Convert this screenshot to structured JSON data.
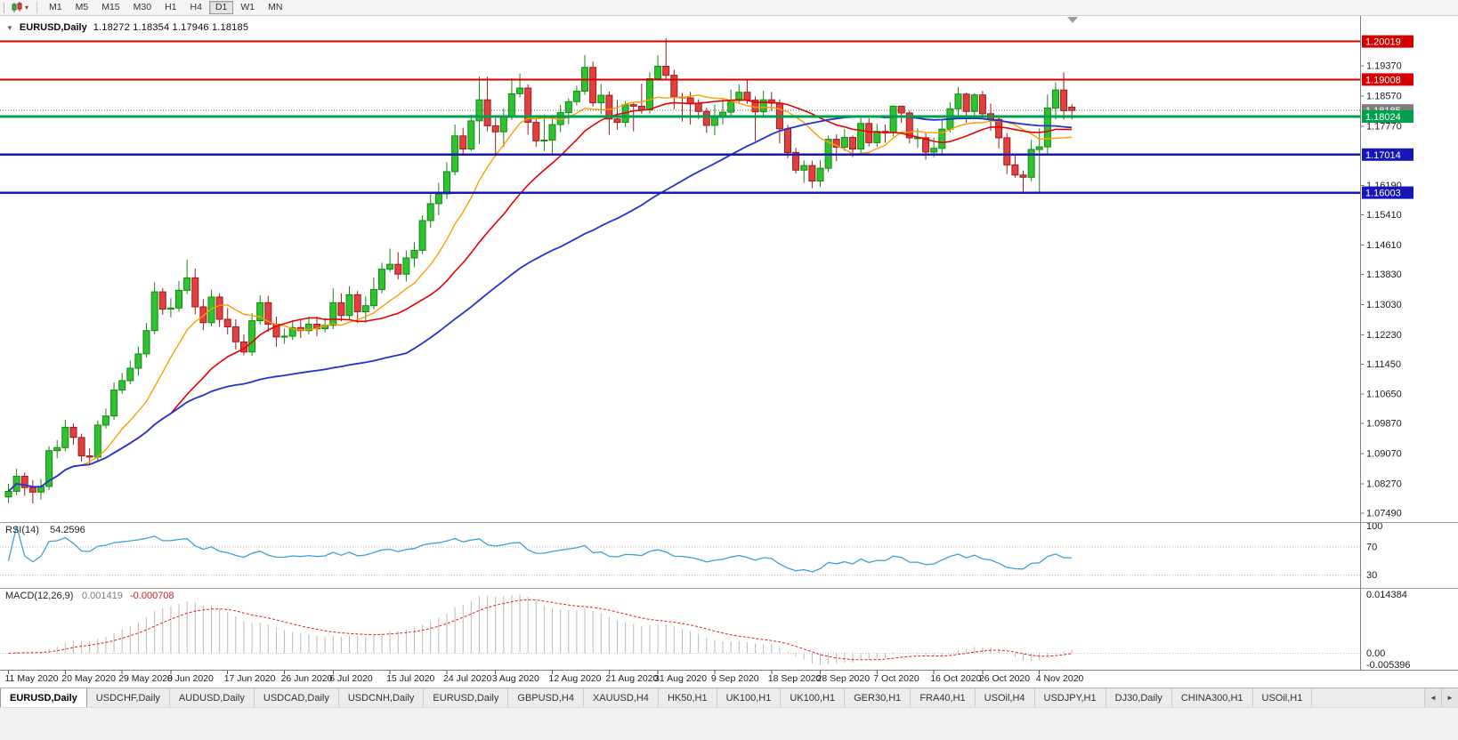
{
  "toolbar": {
    "timeframes": [
      "M1",
      "M5",
      "M15",
      "M30",
      "H1",
      "H4",
      "D1",
      "W1",
      "MN"
    ],
    "active": "D1"
  },
  "chart": {
    "collapse_icon": "▼",
    "symbol": "EURUSD,Daily",
    "ohlc_text": "1.18272 1.18354 1.17946 1.18185"
  },
  "price_axis": {
    "current_price": {
      "label": "1.18185",
      "value": 1.18185,
      "badge_color": "#7d7d7d",
      "line_color": "#666666"
    },
    "ticks": [
      {
        "value": 1.1937,
        "label": "1.19370"
      },
      {
        "value": 1.1857,
        "label": "1.18570"
      },
      {
        "value": 1.1777,
        "label": "1.17770"
      },
      {
        "value": 1.1619,
        "label": "1.16190"
      },
      {
        "value": 1.1541,
        "label": "1.15410"
      },
      {
        "value": 1.1461,
        "label": "1.14610"
      },
      {
        "value": 1.1383,
        "label": "1.13830"
      },
      {
        "value": 1.1303,
        "label": "1.13030"
      },
      {
        "value": 1.1223,
        "label": "1.12230"
      },
      {
        "value": 1.1145,
        "label": "1.11450"
      },
      {
        "value": 1.1065,
        "label": "1.10650"
      },
      {
        "value": 1.0987,
        "label": "1.09870"
      },
      {
        "value": 1.0907,
        "label": "1.09070"
      },
      {
        "value": 1.0827,
        "label": "1.08270"
      },
      {
        "value": 1.0749,
        "label": "1.07490"
      }
    ]
  },
  "levels": [
    {
      "label": "1.20019",
      "value": 1.20019,
      "color": "#d40000",
      "width": 2
    },
    {
      "label": "1.19008",
      "value": 1.19008,
      "color": "#d40000",
      "width": 2
    },
    {
      "label": "1.18024",
      "value": 1.18024,
      "color": "#00a04e",
      "width": 3
    },
    {
      "label": "1.17014",
      "value": 1.17014,
      "color": "#1717b8",
      "width": 2.5
    },
    {
      "label": "1.16003",
      "value": 1.16003,
      "color": "#1717b8",
      "width": 2.5
    }
  ],
  "chart_data": {
    "type": "candlestick",
    "title": "EURUSD,Daily",
    "ylim": [
      1.073,
      1.206
    ],
    "up_color": "#2fc32f",
    "up_border": "#128912",
    "down_color": "#e24040",
    "down_border": "#9e1a1a",
    "x_labels": [
      {
        "i": 0,
        "label": "11 May 2020"
      },
      {
        "i": 7,
        "label": "20 May 2020"
      },
      {
        "i": 14,
        "label": "29 May 2020"
      },
      {
        "i": 20,
        "label": "8 Jun 2020"
      },
      {
        "i": 27,
        "label": "17 Jun 2020"
      },
      {
        "i": 34,
        "label": "26 Jun 2020"
      },
      {
        "i": 40,
        "label": "6 Jul 2020"
      },
      {
        "i": 47,
        "label": "15 Jul 2020"
      },
      {
        "i": 54,
        "label": "24 Jul 2020"
      },
      {
        "i": 60,
        "label": "3 Aug 2020"
      },
      {
        "i": 67,
        "label": "12 Aug 2020"
      },
      {
        "i": 74,
        "label": "21 Aug 2020"
      },
      {
        "i": 80,
        "label": "31 Aug 2020"
      },
      {
        "i": 87,
        "label": "9 Sep 2020"
      },
      {
        "i": 94,
        "label": "18 Sep 2020"
      },
      {
        "i": 100,
        "label": "28 Sep 2020"
      },
      {
        "i": 107,
        "label": "7 Oct 2020"
      },
      {
        "i": 114,
        "label": "16 Oct 2020"
      },
      {
        "i": 120,
        "label": "26 Oct 2020"
      },
      {
        "i": 127,
        "label": "4 Nov 2020"
      }
    ],
    "candles": [
      [
        1.0792,
        1.0827,
        1.0776,
        1.0807
      ],
      [
        1.0807,
        1.0867,
        1.0797,
        1.0847
      ],
      [
        1.0847,
        1.0857,
        1.0795,
        1.0817
      ],
      [
        1.0817,
        1.0837,
        1.0775,
        1.0805
      ],
      [
        1.0805,
        1.084,
        1.0785,
        1.082
      ],
      [
        1.082,
        1.0927,
        1.081,
        1.0915
      ],
      [
        1.0915,
        1.0943,
        1.0895,
        1.0923
      ],
      [
        1.0923,
        1.0997,
        1.0913,
        1.0977
      ],
      [
        1.0977,
        1.0987,
        1.093,
        1.095
      ],
      [
        1.095,
        1.096,
        1.0886,
        1.0901
      ],
      [
        1.0901,
        1.0921,
        1.0878,
        1.0898
      ],
      [
        1.0898,
        1.0995,
        1.0888,
        1.0983
      ],
      [
        1.0983,
        1.1027,
        1.0973,
        1.1007
      ],
      [
        1.1007,
        1.1096,
        1.0997,
        1.1076
      ],
      [
        1.1076,
        1.1121,
        1.1066,
        1.1101
      ],
      [
        1.1101,
        1.1154,
        1.1091,
        1.1134
      ],
      [
        1.1134,
        1.1192,
        1.1114,
        1.1172
      ],
      [
        1.1172,
        1.1254,
        1.1162,
        1.1234
      ],
      [
        1.1234,
        1.1362,
        1.1224,
        1.1337
      ],
      [
        1.1337,
        1.1347,
        1.1276,
        1.1291
      ],
      [
        1.1291,
        1.132,
        1.1269,
        1.1294
      ],
      [
        1.1294,
        1.1366,
        1.1284,
        1.1341
      ],
      [
        1.1341,
        1.1422,
        1.1331,
        1.1374
      ],
      [
        1.1374,
        1.1399,
        1.1277,
        1.1297
      ],
      [
        1.1297,
        1.1317,
        1.1235,
        1.1255
      ],
      [
        1.1255,
        1.1343,
        1.1245,
        1.1323
      ],
      [
        1.1323,
        1.1333,
        1.1244,
        1.1264
      ],
      [
        1.1264,
        1.1294,
        1.1224,
        1.1244
      ],
      [
        1.1244,
        1.1264,
        1.1184,
        1.1204
      ],
      [
        1.1204,
        1.1224,
        1.1168,
        1.1177
      ],
      [
        1.1177,
        1.128,
        1.1167,
        1.126
      ],
      [
        1.126,
        1.1328,
        1.125,
        1.1308
      ],
      [
        1.1308,
        1.1326,
        1.1231,
        1.1251
      ],
      [
        1.1251,
        1.1271,
        1.1191,
        1.1217
      ],
      [
        1.1217,
        1.1239,
        1.1199,
        1.1219
      ],
      [
        1.1219,
        1.1262,
        1.1209,
        1.1242
      ],
      [
        1.1242,
        1.1262,
        1.1214,
        1.1234
      ],
      [
        1.1234,
        1.1271,
        1.1224,
        1.1251
      ],
      [
        1.1251,
        1.1271,
        1.1219,
        1.1239
      ],
      [
        1.1239,
        1.1268,
        1.1229,
        1.1248
      ],
      [
        1.1248,
        1.1346,
        1.1238,
        1.1308
      ],
      [
        1.1308,
        1.1333,
        1.1259,
        1.1274
      ],
      [
        1.1274,
        1.1352,
        1.1264,
        1.1329
      ],
      [
        1.1329,
        1.1339,
        1.1254,
        1.1284
      ],
      [
        1.1284,
        1.1325,
        1.1254,
        1.13
      ],
      [
        1.13,
        1.1375,
        1.129,
        1.1343
      ],
      [
        1.1343,
        1.1414,
        1.1333,
        1.1397
      ],
      [
        1.1397,
        1.1452,
        1.139,
        1.141
      ],
      [
        1.141,
        1.1442,
        1.137,
        1.1384
      ],
      [
        1.1384,
        1.1447,
        1.1364,
        1.1427
      ],
      [
        1.1427,
        1.1468,
        1.1402,
        1.1447
      ],
      [
        1.1447,
        1.154,
        1.1437,
        1.1526
      ],
      [
        1.1526,
        1.1601,
        1.1507,
        1.1571
      ],
      [
        1.1571,
        1.1627,
        1.154,
        1.1597
      ],
      [
        1.1597,
        1.1681,
        1.1583,
        1.1656
      ],
      [
        1.1656,
        1.1781,
        1.1646,
        1.1751
      ],
      [
        1.1751,
        1.1773,
        1.17,
        1.1716
      ],
      [
        1.1716,
        1.1807,
        1.1711,
        1.1791
      ],
      [
        1.1791,
        1.1909,
        1.173,
        1.1847
      ],
      [
        1.1847,
        1.1908,
        1.1763,
        1.1778
      ],
      [
        1.1778,
        1.1798,
        1.1696,
        1.1762
      ],
      [
        1.1762,
        1.1824,
        1.1722,
        1.1803
      ],
      [
        1.1803,
        1.1904,
        1.1793,
        1.1863
      ],
      [
        1.1863,
        1.1916,
        1.1853,
        1.1878
      ],
      [
        1.1878,
        1.1888,
        1.1754,
        1.1787
      ],
      [
        1.1787,
        1.1797,
        1.1722,
        1.1738
      ],
      [
        1.1738,
        1.1808,
        1.1711,
        1.174
      ],
      [
        1.174,
        1.1807,
        1.1701,
        1.1781
      ],
      [
        1.1781,
        1.1833,
        1.1761,
        1.1813
      ],
      [
        1.1813,
        1.1851,
        1.1782,
        1.1842
      ],
      [
        1.1842,
        1.1884,
        1.1832,
        1.187
      ],
      [
        1.187,
        1.1966,
        1.186,
        1.1933
      ],
      [
        1.1933,
        1.1948,
        1.1829,
        1.1839
      ],
      [
        1.1839,
        1.1889,
        1.1809,
        1.1859
      ],
      [
        1.1859,
        1.1869,
        1.1754,
        1.1796
      ],
      [
        1.1796,
        1.1846,
        1.1767,
        1.1787
      ],
      [
        1.1787,
        1.1844,
        1.1774,
        1.1834
      ],
      [
        1.1834,
        1.184,
        1.1763,
        1.183
      ],
      [
        1.183,
        1.189,
        1.181,
        1.182
      ],
      [
        1.182,
        1.192,
        1.181,
        1.1903
      ],
      [
        1.1903,
        1.1965,
        1.1898,
        1.1936
      ],
      [
        1.1936,
        1.2011,
        1.1902,
        1.1912
      ],
      [
        1.1912,
        1.1927,
        1.1822,
        1.1854
      ],
      [
        1.1854,
        1.1865,
        1.1789,
        1.1852
      ],
      [
        1.1852,
        1.1868,
        1.1781,
        1.1838
      ],
      [
        1.1838,
        1.1848,
        1.1796,
        1.1816
      ],
      [
        1.1816,
        1.1826,
        1.1759,
        1.1779
      ],
      [
        1.1779,
        1.1834,
        1.1753,
        1.1801
      ],
      [
        1.1801,
        1.1852,
        1.1781,
        1.1814
      ],
      [
        1.1814,
        1.1874,
        1.1804,
        1.1845
      ],
      [
        1.1845,
        1.1888,
        1.1835,
        1.1867
      ],
      [
        1.1867,
        1.19,
        1.1836,
        1.1846
      ],
      [
        1.1846,
        1.1856,
        1.1737,
        1.1815
      ],
      [
        1.1815,
        1.1871,
        1.1805,
        1.1847
      ],
      [
        1.1847,
        1.1868,
        1.1818,
        1.1838
      ],
      [
        1.1838,
        1.1848,
        1.1731,
        1.177
      ],
      [
        1.177,
        1.178,
        1.1692,
        1.1707
      ],
      [
        1.1707,
        1.1719,
        1.1651,
        1.166
      ],
      [
        1.166,
        1.1686,
        1.1626,
        1.1672
      ],
      [
        1.1672,
        1.1685,
        1.1612,
        1.1631
      ],
      [
        1.1631,
        1.1686,
        1.1615,
        1.1665
      ],
      [
        1.1665,
        1.1752,
        1.1655,
        1.1742
      ],
      [
        1.1742,
        1.1755,
        1.1684,
        1.1721
      ],
      [
        1.1721,
        1.1769,
        1.1711,
        1.1747
      ],
      [
        1.1747,
        1.1752,
        1.1695,
        1.1716
      ],
      [
        1.1716,
        1.1798,
        1.1706,
        1.1784
      ],
      [
        1.1784,
        1.1798,
        1.1723,
        1.1733
      ],
      [
        1.1733,
        1.1783,
        1.1723,
        1.1763
      ],
      [
        1.1763,
        1.1781,
        1.1733,
        1.176
      ],
      [
        1.176,
        1.1832,
        1.175,
        1.183
      ],
      [
        1.183,
        1.1831,
        1.1786,
        1.1812
      ],
      [
        1.1812,
        1.1818,
        1.1731,
        1.1746
      ],
      [
        1.1746,
        1.1771,
        1.172,
        1.1746
      ],
      [
        1.1746,
        1.1758,
        1.1688,
        1.1708
      ],
      [
        1.1708,
        1.1747,
        1.1694,
        1.1718
      ],
      [
        1.1718,
        1.1794,
        1.1703,
        1.1769
      ],
      [
        1.1769,
        1.184,
        1.176,
        1.1823
      ],
      [
        1.1823,
        1.1881,
        1.1806,
        1.1862
      ],
      [
        1.1862,
        1.1866,
        1.1786,
        1.1816
      ],
      [
        1.1816,
        1.1864,
        1.1799,
        1.186
      ],
      [
        1.186,
        1.187,
        1.18,
        1.181
      ],
      [
        1.181,
        1.1837,
        1.1765,
        1.1795
      ],
      [
        1.1795,
        1.18,
        1.1718,
        1.1746
      ],
      [
        1.1746,
        1.1759,
        1.165,
        1.1674
      ],
      [
        1.1674,
        1.1704,
        1.164,
        1.1647
      ],
      [
        1.1647,
        1.1659,
        1.1603,
        1.1641
      ],
      [
        1.1641,
        1.1741,
        1.1631,
        1.1715
      ],
      [
        1.1715,
        1.1771,
        1.1603,
        1.1722
      ],
      [
        1.1722,
        1.1861,
        1.1702,
        1.1825
      ],
      [
        1.1825,
        1.1893,
        1.1795,
        1.1873
      ],
      [
        1.1873,
        1.192,
        1.1795,
        1.1818
      ],
      [
        1.18272,
        1.18354,
        1.17946,
        1.18185
      ]
    ],
    "moving_averages": [
      {
        "period": 10,
        "color": "#ff9d00",
        "width": 1.4
      },
      {
        "period": 21,
        "color": "#e60000",
        "width": 1.6
      },
      {
        "period": 50,
        "color": "#2433cc",
        "width": 1.8
      }
    ],
    "indicators": [
      {
        "type": "rsi",
        "label": "RSI(14)",
        "value": "54.2596",
        "period": 14,
        "levels": [
          70,
          30
        ],
        "range": [
          15,
          102
        ],
        "color": "#3f9fd8",
        "axis_labels": [
          {
            "v": 100,
            "label": "100"
          },
          {
            "v": 70,
            "label": "70"
          },
          {
            "v": 30,
            "label": "30"
          }
        ]
      },
      {
        "type": "macd",
        "label": "MACD(12,26,9)",
        "values": [
          "0.001419",
          "-0.000708"
        ],
        "fast": 12,
        "slow": 26,
        "signal": 9,
        "hist_color": "#b9b9b9",
        "signal_color": "#e02020",
        "axis_labels": [
          "0.014384",
          "0.00",
          "-0.005396"
        ]
      }
    ]
  },
  "tabbar": {
    "scroll_left": "◄",
    "scroll_right": "►",
    "tabs": [
      {
        "label": "EURUSD,Daily",
        "active": true
      },
      {
        "label": "USDCHF,Daily"
      },
      {
        "label": "AUDUSD,Daily"
      },
      {
        "label": "USDCAD,Daily"
      },
      {
        "label": "USDCNH,Daily"
      },
      {
        "label": "EURUSD,Daily"
      },
      {
        "label": "GBPUSD,H4"
      },
      {
        "label": "XAUUSD,H4"
      },
      {
        "label": "HK50,H1"
      },
      {
        "label": "UK100,H1"
      },
      {
        "label": "UK100,H1"
      },
      {
        "label": "GER30,H1"
      },
      {
        "label": "FRA40,H1"
      },
      {
        "label": "USOil,H4"
      },
      {
        "label": "USDJPY,H1"
      },
      {
        "label": "DJ30,Daily"
      },
      {
        "label": "CHINA300,H1"
      },
      {
        "label": "USOil,H1"
      }
    ]
  }
}
